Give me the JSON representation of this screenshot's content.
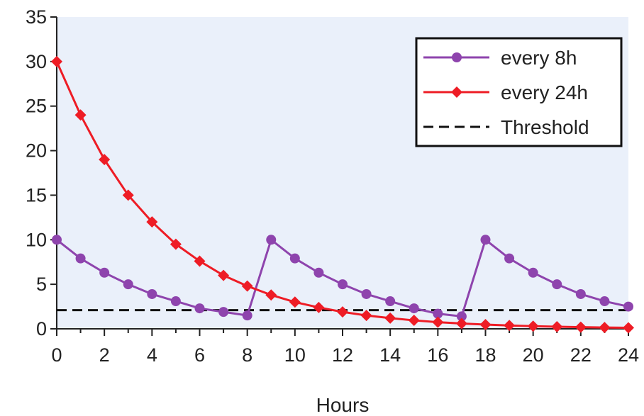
{
  "chart_data": {
    "type": "line",
    "title": "",
    "xlabel": "Hours",
    "ylabel": "",
    "xlim": [
      0,
      24
    ],
    "ylim": [
      0,
      35
    ],
    "xticks": [
      "0",
      "2",
      "4",
      "6",
      "8",
      "10",
      "12",
      "14",
      "16",
      "18",
      "20",
      "22",
      "24"
    ],
    "yticks": [
      "0",
      "5",
      "10",
      "15",
      "20",
      "25",
      "30",
      "35"
    ],
    "grid": false,
    "legend_position": "top-right",
    "background_color": "#eaf0fa",
    "series": [
      {
        "name": "every 8h",
        "color": "#8e44ad",
        "marker": "circle",
        "x": [
          0,
          1,
          2,
          3,
          4,
          5,
          6,
          7,
          8,
          9,
          10,
          11,
          12,
          13,
          14,
          15,
          16,
          17,
          18,
          19,
          20,
          21,
          22,
          23,
          24
        ],
        "y": [
          10.0,
          7.9,
          6.3,
          5.0,
          3.9,
          3.1,
          2.3,
          1.9,
          1.5,
          10.0,
          7.9,
          6.3,
          5.0,
          3.9,
          3.1,
          2.3,
          1.7,
          1.4,
          10.0,
          7.9,
          6.3,
          5.0,
          3.9,
          3.1,
          2.5
        ]
      },
      {
        "name": "every 24h",
        "color": "#ee1c25",
        "marker": "diamond",
        "x": [
          0,
          1,
          2,
          3,
          4,
          5,
          6,
          7,
          8,
          9,
          10,
          11,
          12,
          13,
          14,
          15,
          16,
          17,
          18,
          19,
          20,
          21,
          22,
          23,
          24
        ],
        "y": [
          30.0,
          24.0,
          19.0,
          15.0,
          12.0,
          9.5,
          7.6,
          6.0,
          4.8,
          3.8,
          3.0,
          2.4,
          1.9,
          1.5,
          1.2,
          0.95,
          0.75,
          0.6,
          0.48,
          0.38,
          0.3,
          0.24,
          0.19,
          0.15,
          0.12
        ]
      }
    ],
    "threshold": {
      "name": "Threshold",
      "value": 2.1,
      "color": "#111111",
      "style": "dashed"
    }
  }
}
